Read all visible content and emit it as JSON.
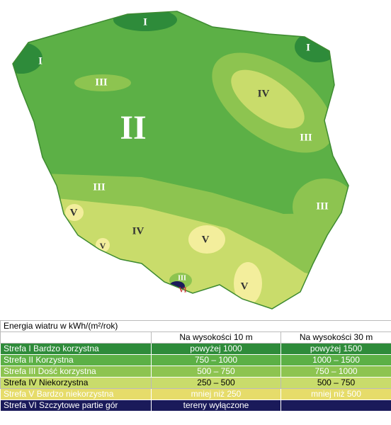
{
  "map": {
    "labels": [
      "I",
      "I",
      "I",
      "III",
      "II",
      "IV",
      "III",
      "III",
      "III",
      "V",
      "IV",
      "V",
      "V",
      "V",
      "III",
      "VI"
    ]
  },
  "table": {
    "title": "Energia wiatru w kWh/(m²/rok)",
    "columns": [
      "Na wysokości 10 m",
      "Na wysokości 30 m"
    ],
    "rows": [
      [
        "Strefa I Bardzo korzystna",
        "powyżej 1000",
        "powyżej 1500"
      ],
      [
        "Strefa II Korzystna",
        "750 – 1000",
        "1000 – 1500"
      ],
      [
        "Strefa III Dość korzystna",
        "500 – 750",
        "750 – 1000"
      ],
      [
        "Strefa IV Niekorzystna",
        "250 – 500",
        "500 – 750"
      ],
      [
        "Strefa V Bardzo niekorzystna",
        "mniej niż 250",
        "mniej niż 500"
      ],
      [
        "Strefa VI Szczytowe partie gór",
        "tereny wyłączone"
      ]
    ]
  }
}
